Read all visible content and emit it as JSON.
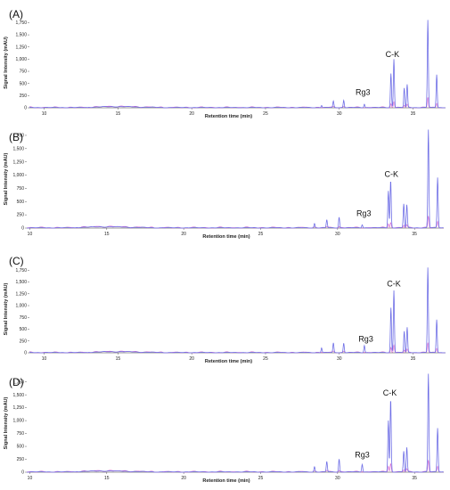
{
  "colors": {
    "trace_main": "#6f6fe6",
    "trace_secondary": "#d24ec8",
    "axis": "#333333",
    "text": "#111111"
  },
  "chart_data": [
    {
      "type": "line",
      "panel_label": "(A)",
      "xlabel": "Retention time (min)",
      "ylabel": "Signal Intensity (mAU)",
      "xlim": [
        9,
        37.2
      ],
      "ylim": [
        0,
        1850
      ],
      "xticks": [
        10,
        15,
        20,
        25,
        30,
        35
      ],
      "yticks": [
        0,
        250,
        500,
        750,
        1000,
        1250,
        1500,
        1750
      ],
      "ytick_labels": [
        "0",
        "250",
        "500",
        "750",
        "1,000",
        "1,250",
        "1,500",
        "1,750"
      ],
      "annotations": [
        {
          "text": "Rg3",
          "x": 31.6,
          "y": 230
        },
        {
          "text": "C-K",
          "x": 33.6,
          "y": 1010
        }
      ],
      "peaks": [
        {
          "rt": 28.8,
          "height": 45
        },
        {
          "rt": 29.6,
          "height": 130
        },
        {
          "rt": 30.3,
          "height": 150
        },
        {
          "rt": 31.7,
          "height": 70
        },
        {
          "rt": 33.5,
          "height": 700
        },
        {
          "rt": 33.7,
          "height": 1000
        },
        {
          "rt": 34.4,
          "height": 400
        },
        {
          "rt": 34.6,
          "height": 470
        },
        {
          "rt": 36.0,
          "height": 1800
        },
        {
          "rt": 36.6,
          "height": 680
        }
      ]
    },
    {
      "type": "line",
      "panel_label": "(B)",
      "xlabel": "Retention time (min)",
      "ylabel": "Signal Intensity (mAU)",
      "xlim": [
        9.8,
        36.9
      ],
      "ylim": [
        0,
        1850
      ],
      "xticks": [
        10,
        15,
        20,
        25,
        30,
        35
      ],
      "yticks": [
        0,
        250,
        500,
        750,
        1000,
        1250,
        1500,
        1750
      ],
      "ytick_labels": [
        "0",
        "250",
        "500",
        "750",
        "1,000",
        "1,250",
        "1,500",
        "1,750"
      ],
      "annotations": [
        {
          "text": "Rg3",
          "x": 31.7,
          "y": 190
        },
        {
          "text": "C-K",
          "x": 33.5,
          "y": 930
        }
      ],
      "peaks": [
        {
          "rt": 28.5,
          "height": 80
        },
        {
          "rt": 29.3,
          "height": 150
        },
        {
          "rt": 30.1,
          "height": 200
        },
        {
          "rt": 31.6,
          "height": 60
        },
        {
          "rt": 33.3,
          "height": 700
        },
        {
          "rt": 33.45,
          "height": 900
        },
        {
          "rt": 34.3,
          "height": 450
        },
        {
          "rt": 34.5,
          "height": 430
        },
        {
          "rt": 35.9,
          "height": 1850
        },
        {
          "rt": 36.5,
          "height": 950
        }
      ]
    },
    {
      "type": "line",
      "panel_label": "(C)",
      "xlabel": "Retention time (min)",
      "ylabel": "Signal Intensity (mAU)",
      "xlim": [
        9,
        37.2
      ],
      "ylim": [
        0,
        1850
      ],
      "xticks": [
        10,
        15,
        20,
        25,
        30,
        35
      ],
      "yticks": [
        0,
        250,
        500,
        750,
        1000,
        1250,
        1500,
        1750
      ],
      "ytick_labels": [
        "0",
        "250",
        "500",
        "750",
        "1,000",
        "1,250",
        "1,500",
        "1,750"
      ],
      "annotations": [
        {
          "text": "Rg3",
          "x": 31.8,
          "y": 200
        },
        {
          "text": "C-K",
          "x": 33.7,
          "y": 1370
        }
      ],
      "peaks": [
        {
          "rt": 28.8,
          "height": 100
        },
        {
          "rt": 29.6,
          "height": 200
        },
        {
          "rt": 30.3,
          "height": 200
        },
        {
          "rt": 31.7,
          "height": 150
        },
        {
          "rt": 33.5,
          "height": 950
        },
        {
          "rt": 33.7,
          "height": 1320
        },
        {
          "rt": 34.4,
          "height": 450
        },
        {
          "rt": 34.6,
          "height": 530
        },
        {
          "rt": 36.0,
          "height": 1800
        },
        {
          "rt": 36.6,
          "height": 700
        }
      ]
    },
    {
      "type": "line",
      "panel_label": "(D)",
      "xlabel": "Retention time (min)",
      "ylabel": "Signal Intensity (mAU)",
      "xlim": [
        9.8,
        36.9
      ],
      "ylim": [
        0,
        1900
      ],
      "xticks": [
        10,
        15,
        20,
        25,
        30,
        35
      ],
      "yticks": [
        0,
        250,
        500,
        750,
        1000,
        1250,
        1500,
        1750
      ],
      "ytick_labels": [
        "0",
        "250",
        "500",
        "750",
        "1,000",
        "1,250",
        "1,500",
        "1,750"
      ],
      "annotations": [
        {
          "text": "Rg3",
          "x": 31.6,
          "y": 250
        },
        {
          "text": "C-K",
          "x": 33.4,
          "y": 1450
        }
      ],
      "peaks": [
        {
          "rt": 28.5,
          "height": 100
        },
        {
          "rt": 29.3,
          "height": 200
        },
        {
          "rt": 30.1,
          "height": 250
        },
        {
          "rt": 31.6,
          "height": 150
        },
        {
          "rt": 33.3,
          "height": 1000
        },
        {
          "rt": 33.45,
          "height": 1420
        },
        {
          "rt": 34.3,
          "height": 400
        },
        {
          "rt": 34.5,
          "height": 470
        },
        {
          "rt": 35.9,
          "height": 1900
        },
        {
          "rt": 36.5,
          "height": 850
        }
      ]
    }
  ]
}
